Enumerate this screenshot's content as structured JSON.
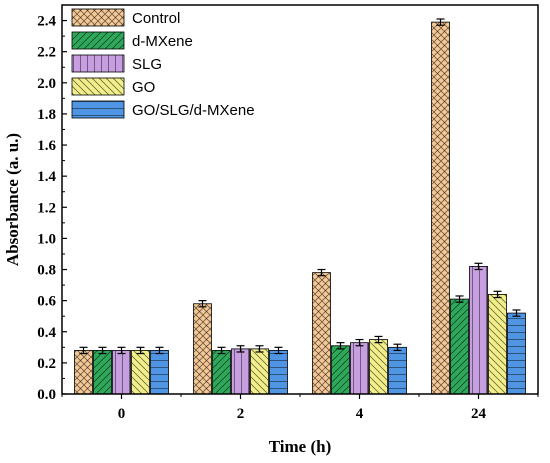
{
  "chart_data": {
    "type": "bar",
    "xlabel": "Time (h)",
    "ylabel": "Absorbance (a. u.)",
    "ylim": [
      0.0,
      2.5
    ],
    "yticks": [
      0.0,
      0.2,
      0.4,
      0.6,
      0.8,
      1.0,
      1.2,
      1.4,
      1.6,
      1.8,
      2.0,
      2.2,
      2.4
    ],
    "categories": [
      "0",
      "2",
      "4",
      "24"
    ],
    "legend_position": "top-left",
    "grid": false,
    "series": [
      {
        "name": "Control",
        "color": "#f5c895",
        "pattern": "crosshatch",
        "values": [
          0.28,
          0.58,
          0.78,
          2.39
        ],
        "errors": [
          0.02,
          0.02,
          0.02,
          0.02
        ]
      },
      {
        "name": "d-MXene",
        "color": "#2ea85a",
        "pattern": "diagonal-right",
        "values": [
          0.28,
          0.28,
          0.31,
          0.61
        ],
        "errors": [
          0.02,
          0.02,
          0.02,
          0.02
        ]
      },
      {
        "name": "SLG",
        "color": "#c79fe0",
        "pattern": "vertical",
        "values": [
          0.28,
          0.29,
          0.33,
          0.82
        ],
        "errors": [
          0.02,
          0.02,
          0.02,
          0.02
        ]
      },
      {
        "name": "GO",
        "color": "#f2ef8a",
        "pattern": "diagonal-left",
        "values": [
          0.28,
          0.29,
          0.35,
          0.64
        ],
        "errors": [
          0.02,
          0.02,
          0.02,
          0.02
        ]
      },
      {
        "name": "GO/SLG/d-MXene",
        "color": "#4f95e3",
        "pattern": "horizontal",
        "values": [
          0.28,
          0.28,
          0.3,
          0.52
        ],
        "errors": [
          0.02,
          0.02,
          0.02,
          0.02
        ]
      }
    ]
  }
}
